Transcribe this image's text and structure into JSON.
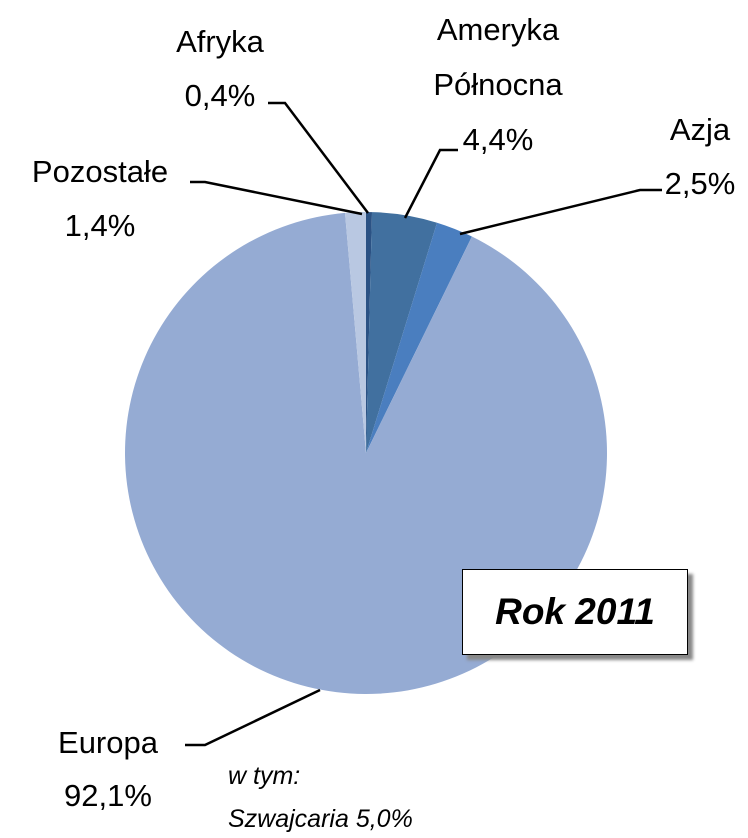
{
  "chart_data": {
    "type": "pie",
    "categories": [
      "Afryka",
      "Ameryka Północna",
      "Azja",
      "Europa",
      "Pozostałe"
    ],
    "values": [
      0.4,
      4.4,
      2.5,
      92.1,
      1.4
    ],
    "value_labels": [
      "0,4%",
      "4,4%",
      "2,5%",
      "92,1%",
      "1,4%"
    ],
    "colors": [
      "#2b5284",
      "#41709f",
      "#4a7ebf",
      "#95abd3",
      "#b9c8e2"
    ],
    "annotations": [
      "Rok 2011",
      "w tym:",
      "Szwajcaria 5,0%"
    ]
  }
}
